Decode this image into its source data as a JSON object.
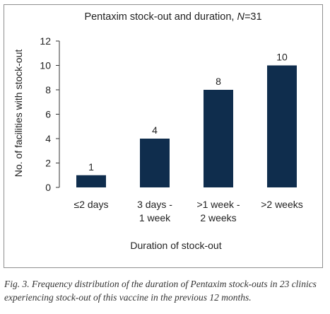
{
  "chart_data": {
    "type": "bar",
    "title_main": "Pentaxim stock-out and duration,",
    "title_n_symbol": "N",
    "title_n_value": "=31",
    "xlabel": "Duration of stock-out",
    "ylabel": "No. of facilities with stock-out",
    "categories": [
      [
        "≤2 days"
      ],
      [
        "3 days -",
        "1 week"
      ],
      [
        ">1 week -",
        "2 weeks"
      ],
      [
        ">2 weeks"
      ]
    ],
    "values": [
      1,
      4,
      8,
      10
    ],
    "value_labels": [
      "1",
      "4",
      "8",
      "10"
    ],
    "ylim": [
      0,
      12
    ],
    "yticks": [
      0,
      2,
      4,
      6,
      8,
      10,
      12
    ],
    "ytick_labels": [
      "0",
      "2",
      "4",
      "6",
      "8",
      "10",
      "12"
    ],
    "grid": false,
    "bar_color": "#0f2d4d"
  },
  "caption": "Fig. 3. Frequency distribution of the duration of Pentaxim stock-outs in 23 clinics experiencing stock-out of this vaccine in the previous 12 months."
}
